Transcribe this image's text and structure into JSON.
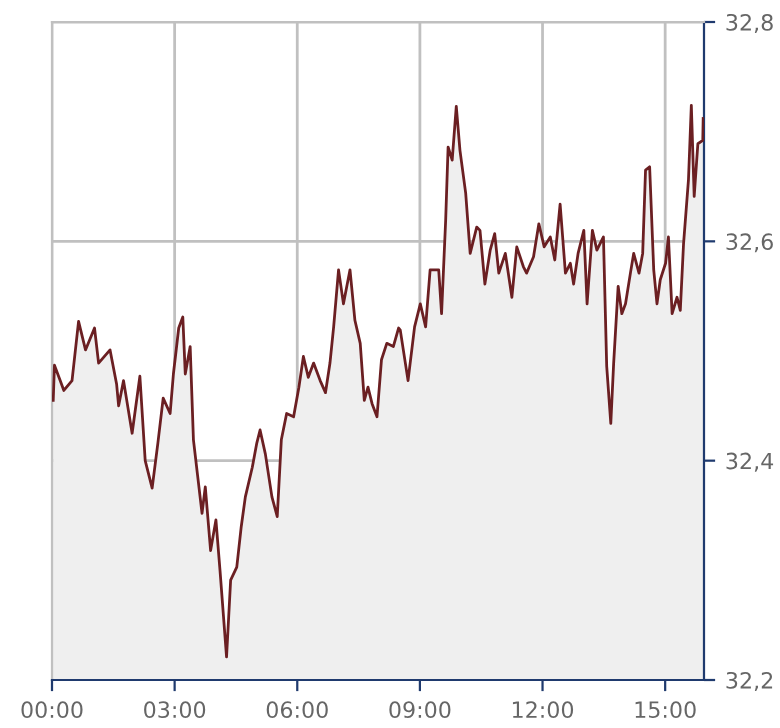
{
  "chart_data": {
    "type": "area",
    "xlim": [
      0,
      15.95
    ],
    "ylim": [
      32.2,
      32.8
    ],
    "xticks": [
      {
        "value": 0,
        "label": "00:00"
      },
      {
        "value": 3,
        "label": "03:00"
      },
      {
        "value": 6,
        "label": "06:00"
      },
      {
        "value": 9,
        "label": "09:00"
      },
      {
        "value": 12,
        "label": "12:00"
      },
      {
        "value": 15,
        "label": "15:00"
      }
    ],
    "yticks": [
      {
        "value": 32.2,
        "label": "32,2"
      },
      {
        "value": 32.4,
        "label": "32,4"
      },
      {
        "value": 32.6,
        "label": "32,6"
      },
      {
        "value": 32.8,
        "label": "32,8"
      }
    ],
    "grid": true,
    "legend": false,
    "series": [
      {
        "color": "#6b1f22",
        "x": [
          0.03,
          0.06,
          0.2,
          0.29,
          0.49,
          0.65,
          0.82,
          1.04,
          1.14,
          1.42,
          1.58,
          1.63,
          1.75,
          1.96,
          2.15,
          2.28,
          2.45,
          2.59,
          2.72,
          2.89,
          2.97,
          3.1,
          3.2,
          3.26,
          3.38,
          3.46,
          3.56,
          3.67,
          3.75,
          3.88,
          4.01,
          4.11,
          4.27,
          4.37,
          4.52,
          4.63,
          4.73,
          4.9,
          5.01,
          5.09,
          5.22,
          5.38,
          5.51,
          5.61,
          5.74,
          5.91,
          6.04,
          6.15,
          6.27,
          6.4,
          6.56,
          6.69,
          6.8,
          6.89,
          7.01,
          7.13,
          7.29,
          7.41,
          7.54,
          7.64,
          7.73,
          7.83,
          7.95,
          8.06,
          8.19,
          8.35,
          8.48,
          8.52,
          8.71,
          8.87,
          9.01,
          9.14,
          9.25,
          9.46,
          9.53,
          9.63,
          9.69,
          9.79,
          9.89,
          9.98,
          10.12,
          10.23,
          10.39,
          10.47,
          10.59,
          10.72,
          10.83,
          10.93,
          11.09,
          11.25,
          11.37,
          11.53,
          11.61,
          11.78,
          11.91,
          12.04,
          12.19,
          12.3,
          12.43,
          12.56,
          12.68,
          12.76,
          12.87,
          13.01,
          13.09,
          13.22,
          13.33,
          13.49,
          13.57,
          13.67,
          13.74,
          13.85,
          13.94,
          14.03,
          14.15,
          14.23,
          14.36,
          14.45,
          14.52,
          14.62,
          14.72,
          14.8,
          14.88,
          15.01,
          15.08,
          15.17,
          15.29,
          15.37,
          15.45,
          15.57,
          15.64,
          15.71,
          15.8,
          15.92,
          15.93
        ],
        "values": [
          32.455,
          32.487,
          32.473,
          32.464,
          32.473,
          32.527,
          32.501,
          32.521,
          32.489,
          32.501,
          32.47,
          32.45,
          32.473,
          32.425,
          32.477,
          32.4,
          32.375,
          32.416,
          32.457,
          32.443,
          32.479,
          32.521,
          32.531,
          32.479,
          32.504,
          32.419,
          32.387,
          32.352,
          32.376,
          32.318,
          32.346,
          32.3,
          32.221,
          32.291,
          32.303,
          32.34,
          32.367,
          32.394,
          32.416,
          32.428,
          32.406,
          32.367,
          32.349,
          32.419,
          32.443,
          32.44,
          32.467,
          32.495,
          32.476,
          32.489,
          32.473,
          32.462,
          32.489,
          32.522,
          32.574,
          32.543,
          32.574,
          32.528,
          32.507,
          32.455,
          32.467,
          32.452,
          32.44,
          32.492,
          32.507,
          32.504,
          32.521,
          32.519,
          32.473,
          32.522,
          32.543,
          32.522,
          32.574,
          32.574,
          32.534,
          32.619,
          32.686,
          32.674,
          32.723,
          32.683,
          32.644,
          32.589,
          32.613,
          32.61,
          32.561,
          32.592,
          32.607,
          32.571,
          32.589,
          32.549,
          32.595,
          32.577,
          32.571,
          32.586,
          32.616,
          32.595,
          32.604,
          32.583,
          32.634,
          32.571,
          32.58,
          32.561,
          32.589,
          32.61,
          32.543,
          32.61,
          32.592,
          32.604,
          32.486,
          32.434,
          32.489,
          32.559,
          32.534,
          32.543,
          32.571,
          32.589,
          32.571,
          32.589,
          32.665,
          32.668,
          32.574,
          32.543,
          32.565,
          32.58,
          32.604,
          32.534,
          32.549,
          32.537,
          32.598,
          32.656,
          32.724,
          32.641,
          32.689,
          32.692,
          32.712
        ]
      }
    ]
  }
}
